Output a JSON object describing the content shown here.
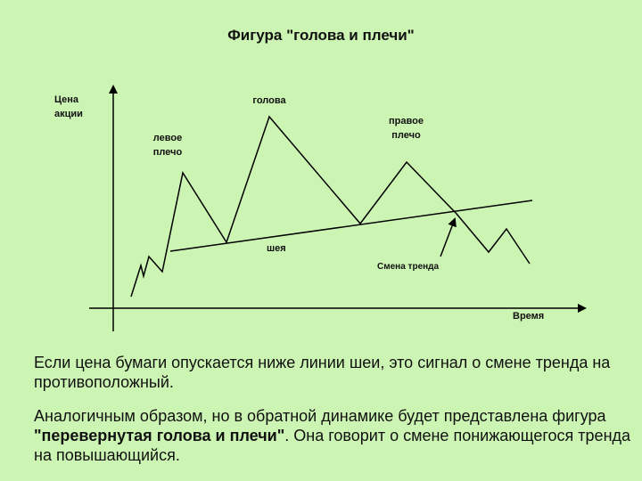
{
  "title": "Фигура \"голова и плечи\"",
  "diagram": {
    "y_axis_label_line1": "Цена",
    "y_axis_label_line2": "акции",
    "x_axis_label": "Время",
    "left_shoulder_line1": "левое",
    "left_shoulder_line2": "плечо",
    "head_label": "голова",
    "right_shoulder_line1": "правое",
    "right_shoulder_line2": "плечо",
    "neck_label": "шея",
    "trend_change_label": "Смена тренда",
    "colors": {
      "line": "#000000",
      "background": "#ccf5b3"
    }
  },
  "text": {
    "para1": "Если цена бумаги опускается ниже линии шеи, это сигнал о смене тренда на противоположный.",
    "para2_before": "Аналогичным образом, но в обратной динамике будет представлена фигура ",
    "para2_bold": "\"перевернутая голова и плечи\"",
    "para2_after": ". Она говорит о смене понижающегося тренда на повышающийся."
  }
}
